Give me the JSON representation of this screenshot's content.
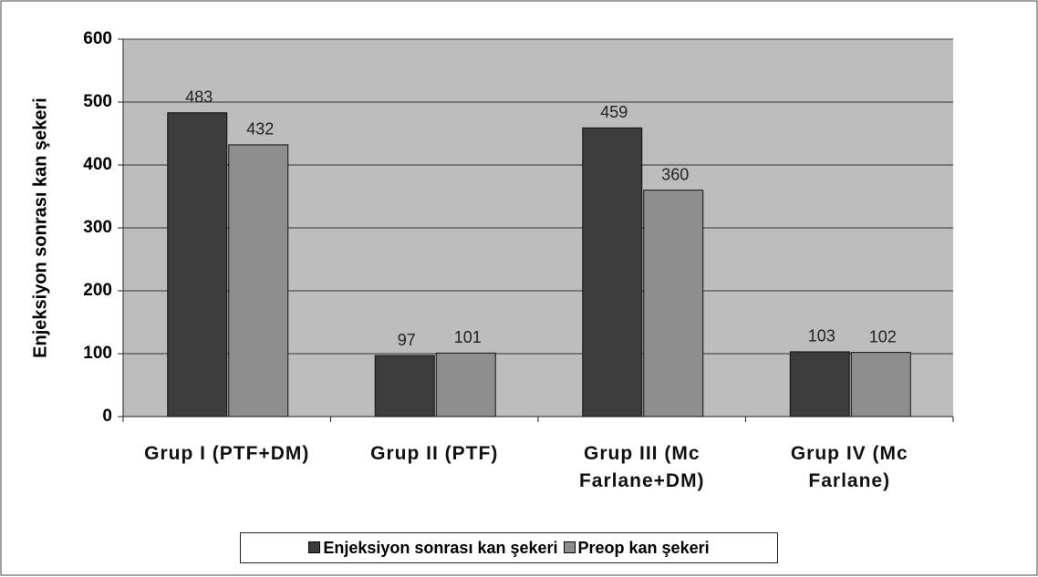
{
  "chart_data": {
    "type": "bar",
    "y_label": "Enjeksiyon sonrası kan şekeri",
    "categories": [
      "Grup I (PTF+DM)",
      "Grup II (PTF)",
      "Grup III (Mc Farlane+DM)",
      "Grup IV (Mc Farlane)"
    ],
    "series": [
      {
        "name": "Enjeksiyon sonrası kan şekeri",
        "color": "#3c3c3c",
        "values": [
          483,
          97,
          459,
          103
        ]
      },
      {
        "name": "Preop kan şekeri",
        "color": "#8e8e8e",
        "values": [
          432,
          101,
          360,
          102
        ]
      }
    ],
    "ylim": [
      0,
      600
    ],
    "yticks": [
      0,
      100,
      200,
      300,
      400,
      500,
      600
    ],
    "grid": true
  }
}
